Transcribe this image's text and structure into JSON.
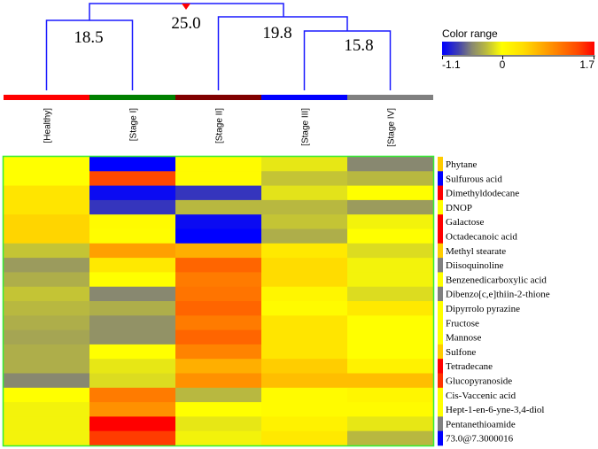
{
  "chart_data": {
    "type": "heatmap",
    "columns": [
      "[Healthy]",
      "[Stage I]",
      "[Stage II]",
      "[Stage III]",
      "[Stage IV]"
    ],
    "column_group_colors": [
      "#ff0000",
      "#008000",
      "#800000",
      "#0000ff",
      "#808080"
    ],
    "rows": [
      "Phytane",
      "Sulfurous acid",
      "Dimethyldodecane",
      "DNOP",
      "Galactose",
      "Octadecanoic acid",
      "Methyl stearate",
      "Diisoquinoline",
      "Benzenedicarboxylic acid",
      "Dibenzo[c,e]thiin-2-thione",
      "Dipyrrolo pyrazine",
      "Fructose",
      "Mannose",
      "Sulfone",
      "Tetradecane",
      "Glucopyranoside",
      "Cis-Vaccenic acid",
      "Hept-1-en-6-yne-3,4-diol",
      "Pentanethioamide",
      "73.0@7.3000016"
    ],
    "row_marker_colors": [
      "#ffcc00",
      "#0000ff",
      "#ff0000",
      "#ffff00",
      "#ff0000",
      "#ff0000",
      "#ffcc00",
      "#808080",
      "#ffff00",
      "#808080",
      "#ffff00",
      "#ffff00",
      "#ffff00",
      "#ffcc00",
      "#ff0000",
      "#ff3300",
      "#ffff00",
      "#ffff00",
      "#808080",
      "#0000ff"
    ],
    "values": [
      [
        0.0,
        -1.1,
        0.05,
        -0.1,
        -0.55
      ],
      [
        0.0,
        1.4,
        0.05,
        -0.25,
        -0.3
      ],
      [
        0.3,
        -1.05,
        -0.85,
        -0.12,
        0.0
      ],
      [
        0.3,
        -0.85,
        -0.3,
        -0.3,
        -0.45
      ],
      [
        0.45,
        0.05,
        -1.05,
        -0.25,
        -0.05
      ],
      [
        0.45,
        0.02,
        -1.1,
        -0.35,
        0.0
      ],
      [
        -0.25,
        0.8,
        0.7,
        0.25,
        -0.15
      ],
      [
        -0.45,
        0.25,
        1.2,
        0.4,
        -0.05
      ],
      [
        -0.35,
        0.0,
        1.05,
        0.4,
        -0.05
      ],
      [
        -0.25,
        -0.55,
        1.1,
        0.1,
        -0.15
      ],
      [
        -0.3,
        -0.35,
        1.2,
        0.05,
        0.25
      ],
      [
        -0.35,
        -0.5,
        1.05,
        0.3,
        0.0
      ],
      [
        -0.4,
        -0.5,
        1.2,
        0.3,
        0.0
      ],
      [
        -0.35,
        0.0,
        1.0,
        0.3,
        0.0
      ],
      [
        -0.35,
        -0.1,
        0.7,
        0.5,
        0.15
      ],
      [
        -0.55,
        -0.15,
        0.9,
        0.6,
        0.6
      ],
      [
        0.0,
        1.05,
        -0.3,
        0.05,
        0.1
      ],
      [
        -0.05,
        0.9,
        0.0,
        0.05,
        0.05
      ],
      [
        -0.05,
        1.7,
        -0.1,
        0.15,
        -0.1
      ],
      [
        -0.05,
        1.45,
        -0.05,
        0.25,
        -0.3
      ]
    ],
    "dendrogram": {
      "merges": [
        {
          "left": "[Healthy]",
          "right": "[Stage I]",
          "label": "18.5"
        },
        {
          "left": "[Stage III]",
          "right": "[Stage IV]",
          "label": "15.8"
        },
        {
          "left": "[Stage II]",
          "right": "[Stage III]+[Stage IV]",
          "label": "19.8"
        },
        {
          "left": "[Healthy]+[Stage I]",
          "right": "rest",
          "label": "25.0"
        }
      ]
    },
    "color_range": {
      "title": "Color range",
      "min": -1.1,
      "mid": 0,
      "max": 1.7,
      "min_label": "-1.1",
      "mid_label": "0",
      "max_label": "1.7",
      "stops": [
        [
          -1.1,
          "#0000ff"
        ],
        [
          -0.8,
          "#4040b0"
        ],
        [
          -0.55,
          "#888870"
        ],
        [
          -0.3,
          "#b8b840"
        ],
        [
          0,
          "#ffff00"
        ],
        [
          0.4,
          "#ffdc00"
        ],
        [
          0.8,
          "#ffa000"
        ],
        [
          1.1,
          "#ff7400"
        ],
        [
          1.4,
          "#ff4800"
        ],
        [
          1.7,
          "#ff0000"
        ]
      ]
    }
  }
}
